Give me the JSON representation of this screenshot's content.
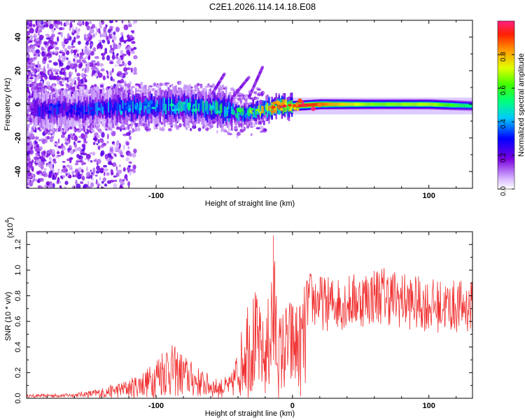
{
  "figure_title": "C2E1.2026.114.14.18.E08",
  "chart_data": [
    {
      "type": "heatmap",
      "title": "C2E1.2026.114.14.18.E08",
      "xlabel": "Height of straight line (km)",
      "ylabel": "Frequency (Hz)",
      "xlim": [
        -195,
        132
      ],
      "ylim": [
        -50,
        50
      ],
      "xticks": [
        -100,
        0,
        100
      ],
      "xtick_labels": [
        "-100",
        "",
        "100"
      ],
      "yticks": [
        -40,
        -20,
        0,
        20,
        40
      ],
      "ytick_labels": [
        "-40",
        "-20",
        "0",
        "20",
        "40"
      ],
      "colorbar": {
        "label": "Normalized spectral amplitude",
        "range": [
          0,
          1
        ],
        "ticks": [
          0.0,
          0.2,
          0.4,
          0.6,
          0.8
        ],
        "tick_labels": [
          "0.0",
          "0.2",
          "0.4",
          "0.6",
          "0.8"
        ]
      },
      "band_center_frequency": [
        {
          "x": -160,
          "y": -3
        },
        {
          "x": -120,
          "y": -2
        },
        {
          "x": -80,
          "y": -1
        },
        {
          "x": -50,
          "y": -3
        },
        {
          "x": -38,
          "y": -6
        },
        {
          "x": -25,
          "y": -4
        },
        {
          "x": -10,
          "y": -1
        },
        {
          "x": 0,
          "y": -1
        },
        {
          "x": 20,
          "y": 0
        },
        {
          "x": 60,
          "y": 0
        },
        {
          "x": 100,
          "y": 0
        },
        {
          "x": 132,
          "y": -1
        }
      ],
      "band_peak_amplitude": [
        {
          "x": -160,
          "a": 0.3
        },
        {
          "x": -120,
          "a": 0.4
        },
        {
          "x": -80,
          "a": 0.45
        },
        {
          "x": -40,
          "a": 0.5
        },
        {
          "x": -15,
          "a": 0.8
        },
        {
          "x": 10,
          "a": 0.95
        },
        {
          "x": 30,
          "a": 0.8
        },
        {
          "x": 60,
          "a": 0.65
        },
        {
          "x": 100,
          "a": 0.7
        },
        {
          "x": 132,
          "a": 0.5
        }
      ]
    },
    {
      "type": "line",
      "xlabel": "Height of straight line (km)",
      "ylabel": "SNR (10 * v/v)",
      "y_multiplier_label": "(x10",
      "y_multiplier_exponent": "4",
      "xlim": [
        -195,
        132
      ],
      "ylim": [
        0,
        1.3
      ],
      "xticks": [
        -100,
        0,
        100
      ],
      "xtick_labels": [
        "-100",
        "0",
        "100"
      ],
      "yticks": [
        0.0,
        0.2,
        0.4,
        0.6,
        0.8,
        1.0,
        1.2
      ],
      "ytick_labels": [
        "0.0",
        "0.2",
        "0.4",
        "0.6",
        "0.8",
        "1.0",
        "1.2"
      ],
      "line_color": "#f03030",
      "series": [
        {
          "name": "SNR",
          "envelope_points": [
            {
              "x": -195,
              "y": 0.03
            },
            {
              "x": -160,
              "y": 0.04
            },
            {
              "x": -140,
              "y": 0.08
            },
            {
              "x": -120,
              "y": 0.15
            },
            {
              "x": -105,
              "y": 0.25
            },
            {
              "x": -93,
              "y": 0.45
            },
            {
              "x": -85,
              "y": 0.4
            },
            {
              "x": -70,
              "y": 0.25
            },
            {
              "x": -55,
              "y": 0.15
            },
            {
              "x": -45,
              "y": 0.18
            },
            {
              "x": -38,
              "y": 0.5
            },
            {
              "x": -33,
              "y": 0.85
            },
            {
              "x": -27,
              "y": 0.85
            },
            {
              "x": -20,
              "y": 0.55
            },
            {
              "x": -14,
              "y": 1.27
            },
            {
              "x": -10,
              "y": 0.65
            },
            {
              "x": -5,
              "y": 0.75
            },
            {
              "x": 0,
              "y": 0.8
            },
            {
              "x": 5,
              "y": 0.75
            },
            {
              "x": 12,
              "y": 1.0
            },
            {
              "x": 25,
              "y": 0.95
            },
            {
              "x": 45,
              "y": 0.98
            },
            {
              "x": 65,
              "y": 1.05
            },
            {
              "x": 85,
              "y": 0.97
            },
            {
              "x": 105,
              "y": 0.93
            },
            {
              "x": 132,
              "y": 0.92
            }
          ]
        }
      ]
    }
  ]
}
